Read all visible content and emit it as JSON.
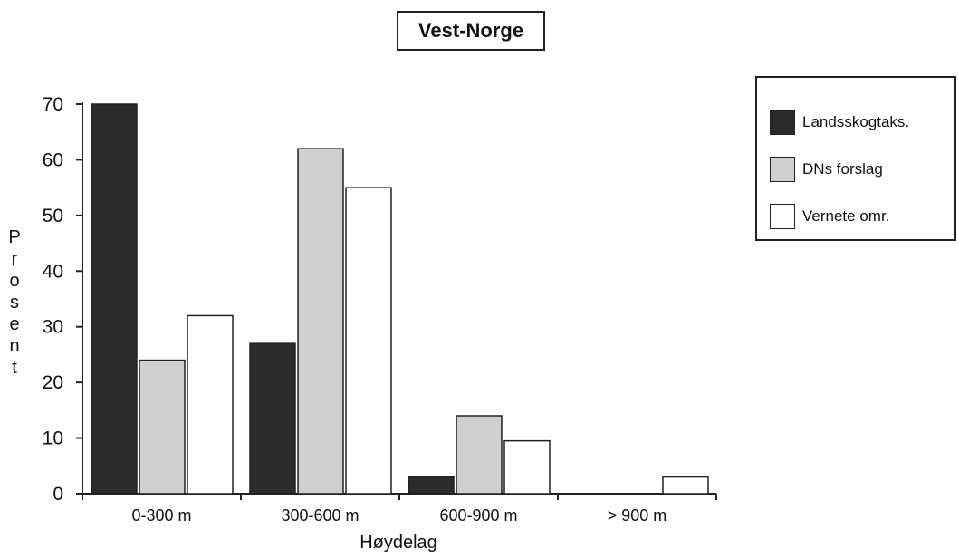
{
  "chart_data": {
    "type": "bar",
    "title": "Vest-Norge",
    "xlabel": "Høydelag",
    "ylabel": "Prosent",
    "ylim": [
      0,
      70
    ],
    "yticks": [
      "0",
      "10",
      "20",
      "30",
      "40",
      "50",
      "60",
      "70"
    ],
    "categories": [
      "0-300 m",
      "300-600 m",
      "600-900 m",
      "> 900 m"
    ],
    "series": [
      {
        "name": "Landsskogtaks.",
        "values": [
          70,
          27,
          3,
          0
        ],
        "color": "#2b2b2b"
      },
      {
        "name": "DNs forslag",
        "values": [
          24,
          62,
          14,
          0
        ],
        "color": "#cfcfcf"
      },
      {
        "name": "Vernete omr.",
        "values": [
          32,
          55,
          9.5,
          3
        ],
        "color": "#ffffff"
      }
    ],
    "legend_position": "top-right",
    "grid": false
  }
}
